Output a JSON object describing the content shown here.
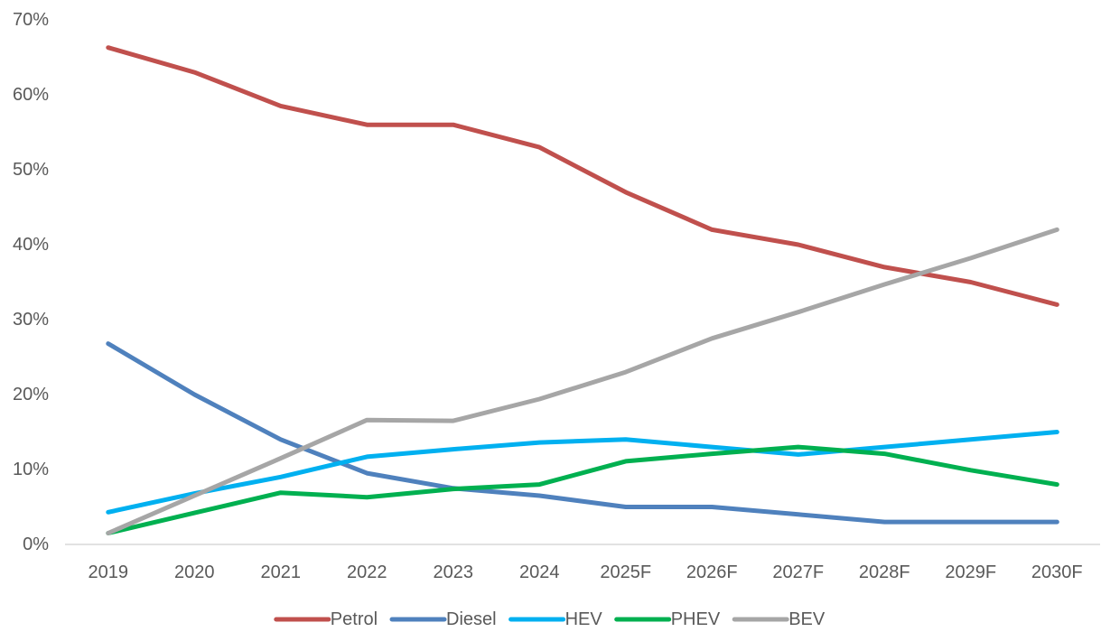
{
  "chart_data": {
    "type": "line",
    "title": "",
    "xlabel": "",
    "ylabel": "",
    "categories": [
      "2019",
      "2020",
      "2021",
      "2022",
      "2023",
      "2024",
      "2025F",
      "2026F",
      "2027F",
      "2028F",
      "2029F",
      "2030F"
    ],
    "ylim": [
      0,
      70
    ],
    "y_ticks": [
      0,
      10,
      20,
      30,
      40,
      50,
      60,
      70
    ],
    "y_tick_labels": [
      "0%",
      "10%",
      "20%",
      "30%",
      "40%",
      "50%",
      "60%",
      "70%"
    ],
    "grid": false,
    "legend_position": "bottom",
    "series": [
      {
        "name": "Petrol",
        "color": "#C0504D",
        "values": [
          66.3,
          63.0,
          58.5,
          56.0,
          56.0,
          53.0,
          47.0,
          42.0,
          40.0,
          37.0,
          35.0,
          32.0
        ]
      },
      {
        "name": "Diesel",
        "color": "#4F81BD",
        "values": [
          26.8,
          20.0,
          14.0,
          9.5,
          7.5,
          6.5,
          5.0,
          5.0,
          4.0,
          3.0,
          3.0,
          3.0
        ]
      },
      {
        "name": "HEV",
        "color": "#00B0F0",
        "values": [
          4.3,
          6.8,
          9.0,
          11.7,
          12.7,
          13.6,
          14.0,
          13.0,
          12.0,
          13.0,
          14.0,
          15.0
        ]
      },
      {
        "name": "PHEV",
        "color": "#00B050",
        "values": [
          1.5,
          4.2,
          6.9,
          6.3,
          7.4,
          8.0,
          11.1,
          12.1,
          13.0,
          12.1,
          9.9,
          8.0
        ]
      },
      {
        "name": "BEV",
        "color": "#A6A6A6",
        "values": [
          1.5,
          6.5,
          11.5,
          16.6,
          16.5,
          19.4,
          23.0,
          27.5,
          31.0,
          34.7,
          38.2,
          42.0
        ]
      }
    ]
  }
}
